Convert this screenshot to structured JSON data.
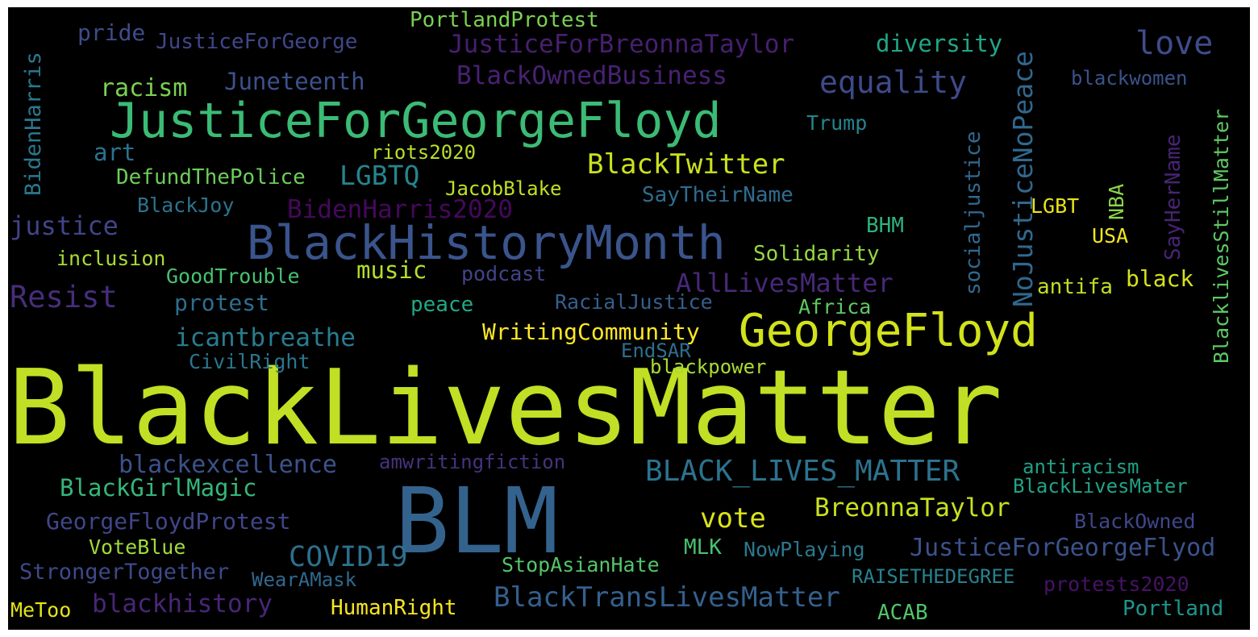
{
  "cloud": {
    "words": [
      {
        "text": "BlackLivesMatter",
        "color": "#c1df24"
      },
      {
        "text": "BLM",
        "color": "#33638d"
      },
      {
        "text": "JusticeForGeorgeFloyd",
        "color": "#3bbb75"
      },
      {
        "text": "BlackHistoryMonth",
        "color": "#3a548c"
      },
      {
        "text": "GeorgeFloyd",
        "color": "#d2e21b"
      },
      {
        "text": "BLACK_LIVES_MATTER",
        "color": "#2c728e"
      },
      {
        "text": "equality",
        "color": "#3e4a89"
      },
      {
        "text": "love",
        "color": "#3e4c8a"
      },
      {
        "text": "JusticeForBreonnaTaylor",
        "color": "#481f70"
      },
      {
        "text": "BlackOwnedBusiness",
        "color": "#482173"
      },
      {
        "text": "COVID19",
        "color": "#2d708e"
      },
      {
        "text": "BlackTransLivesMatter",
        "color": "#34608d"
      },
      {
        "text": "JusticeForGeorgeFlyod",
        "color": "#3b528b"
      },
      {
        "text": "BreonnaTaylor",
        "color": "#c8e020"
      },
      {
        "text": "vote",
        "color": "#dae319"
      },
      {
        "text": "Resist",
        "color": "#472d7b"
      },
      {
        "text": "AllLivesMatter",
        "color": "#482878"
      },
      {
        "text": "BidenHarris2020",
        "color": "#46085c"
      },
      {
        "text": "LGBTQ",
        "color": "#25858e"
      },
      {
        "text": "BlackTwitter",
        "color": "#cae11f"
      },
      {
        "text": "justice",
        "color": "#414487"
      },
      {
        "text": "blackhistory",
        "color": "#482677"
      },
      {
        "text": "blackexcellence",
        "color": "#3b528b"
      },
      {
        "text": "icantbreathe",
        "color": "#287c8e"
      },
      {
        "text": "BlackGirlMagic",
        "color": "#35b779"
      },
      {
        "text": "GeorgeFloydProtest",
        "color": "#404688"
      },
      {
        "text": "Juneteenth",
        "color": "#3b528b"
      },
      {
        "text": "WritingCommunity",
        "color": "#fde725"
      },
      {
        "text": "music",
        "color": "#b5de2b"
      },
      {
        "text": "StrongerTogether",
        "color": "#3e4989"
      },
      {
        "text": "diversity",
        "color": "#21a685"
      },
      {
        "text": "antiracism",
        "color": "#1fa088"
      },
      {
        "text": "PortlandProtest",
        "color": "#7ad151"
      },
      {
        "text": "JusticeForGeorge",
        "color": "#3f4788"
      },
      {
        "text": "pride",
        "color": "#3e4c8a"
      },
      {
        "text": "racism",
        "color": "#7ad151"
      },
      {
        "text": "blackwomen",
        "color": "#3b528b"
      },
      {
        "text": "Trump",
        "color": "#25848e"
      },
      {
        "text": "riots2020",
        "color": "#b8de29"
      },
      {
        "text": "DefundThePolice",
        "color": "#6ccd5a"
      },
      {
        "text": "art",
        "color": "#2c728e"
      },
      {
        "text": "JacobBlake",
        "color": "#c2df23"
      },
      {
        "text": "SayTheirName",
        "color": "#2f6c8e"
      },
      {
        "text": "BlackJoy",
        "color": "#2c738e"
      },
      {
        "text": "LGBT",
        "color": "#e7e419"
      },
      {
        "text": "USA",
        "color": "#f1e51d"
      },
      {
        "text": "BHM",
        "color": "#2db27d"
      },
      {
        "text": "inclusion",
        "color": "#a8db34"
      },
      {
        "text": "Solidarity",
        "color": "#95d840"
      },
      {
        "text": "GoodTrouble",
        "color": "#48c16e"
      },
      {
        "text": "podcast",
        "color": "#414487"
      },
      {
        "text": "antifa",
        "color": "#c0df25"
      },
      {
        "text": "black",
        "color": "#d5e21a"
      },
      {
        "text": "protest",
        "color": "#2e6e8e"
      },
      {
        "text": "peace",
        "color": "#22a884"
      },
      {
        "text": "RacialJustice",
        "color": "#355f8d"
      },
      {
        "text": "Africa",
        "color": "#5ec962"
      },
      {
        "text": "CivilRight",
        "color": "#2a768e"
      },
      {
        "text": "EndSAR",
        "color": "#2d708e"
      },
      {
        "text": "blackpower",
        "color": "#aadc32"
      },
      {
        "text": "amwritingfiction",
        "color": "#46337e"
      },
      {
        "text": "BlackLivesMater",
        "color": "#20a386"
      },
      {
        "text": "BlackOwned",
        "color": "#3f4788"
      },
      {
        "text": "VoteBlue",
        "color": "#a0da39"
      },
      {
        "text": "MLK",
        "color": "#4ac16d"
      },
      {
        "text": "NowPlaying",
        "color": "#2a788e"
      },
      {
        "text": "StopAsianHate",
        "color": "#54c568"
      },
      {
        "text": "WearAMask",
        "color": "#31688e"
      },
      {
        "text": "RAISETHEDEGREE",
        "color": "#26828e"
      },
      {
        "text": "protests2020",
        "color": "#471365"
      },
      {
        "text": "MeToo",
        "color": "#e2e418"
      },
      {
        "text": "HumanRight",
        "color": "#f8e621"
      },
      {
        "text": "ACAB",
        "color": "#52c569"
      },
      {
        "text": "Portland",
        "color": "#1f958b"
      },
      {
        "text": "BidenHarris",
        "color": "#2a788e"
      },
      {
        "text": "NoJusticeNoPeace",
        "color": "#31688e"
      },
      {
        "text": "socialjustice",
        "color": "#30698e"
      },
      {
        "text": "NBA",
        "color": "#8bd646"
      },
      {
        "text": "SayHerName",
        "color": "#482475"
      },
      {
        "text": "BlacklivesStillMatter",
        "color": "#5ec962"
      }
    ]
  }
}
